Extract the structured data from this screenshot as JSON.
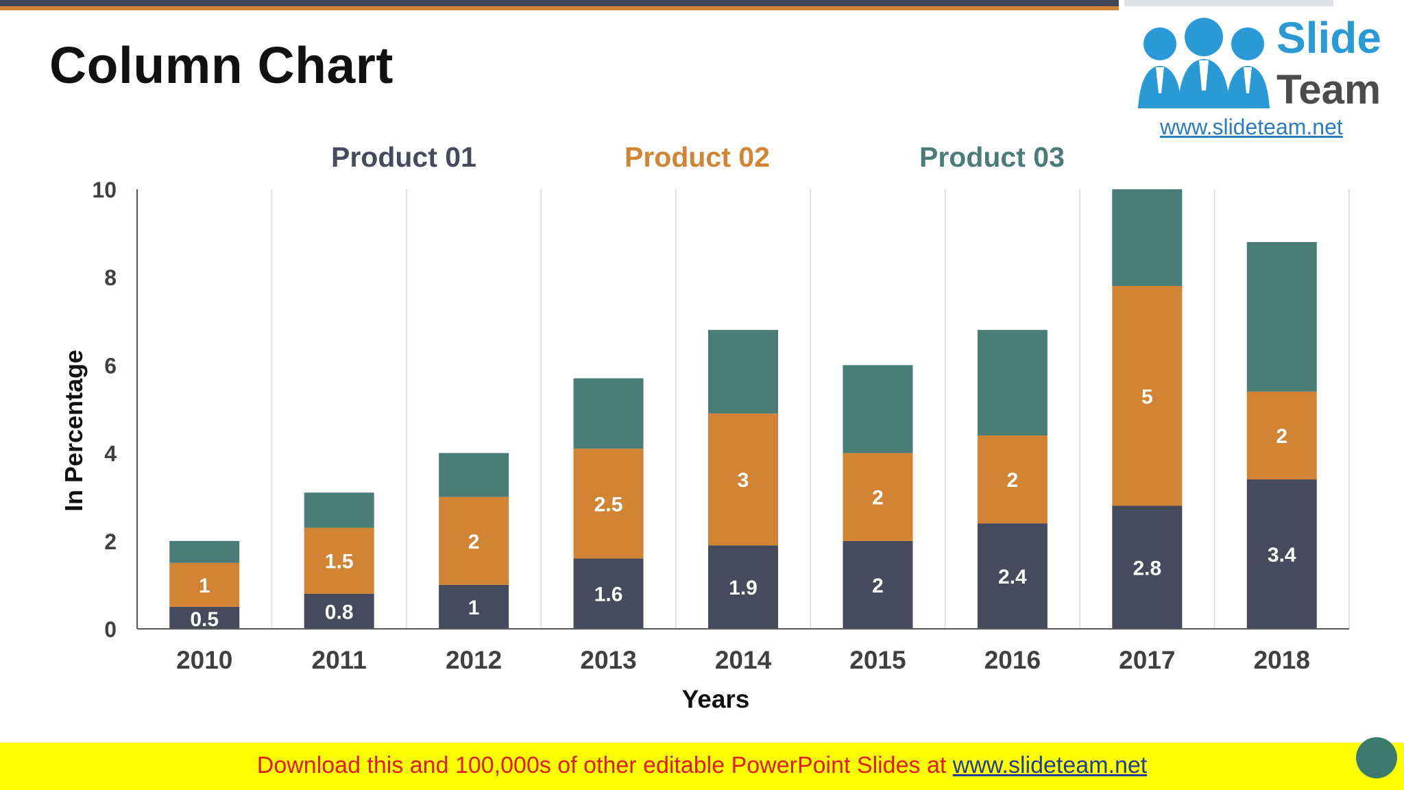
{
  "slide": {
    "title": "Column Chart"
  },
  "logo": {
    "word1": "Slide",
    "word2": "Team",
    "url": "www.slideteam.net"
  },
  "footer": {
    "text": "Download this and 100,000s of other editable PowerPoint Slides at ",
    "link": "www.slideteam.net"
  },
  "colors": {
    "product01": "#464a5c",
    "product02": "#d18433",
    "product03": "#4a7d78",
    "grid": "#d9d9d9",
    "axis": "#595959",
    "tick_text": "#404040",
    "label_light": "#ffffff"
  },
  "chart_data": {
    "type": "bar",
    "stacked": true,
    "title": "",
    "xlabel": "Years",
    "ylabel": "In Percentage",
    "ylim": [
      0,
      10
    ],
    "yticks": [
      0,
      2,
      4,
      6,
      8,
      10
    ],
    "grid": "vertical",
    "legend_position": "top",
    "categories": [
      "2010",
      "2011",
      "2012",
      "2013",
      "2014",
      "2015",
      "2016",
      "2017",
      "2018"
    ],
    "series": [
      {
        "name": "Product 01",
        "values": [
          0.5,
          0.8,
          1,
          1.6,
          1.9,
          2,
          2.4,
          2.8,
          3.4
        ],
        "data_labels": [
          "0.5",
          "0.8",
          "1",
          "1.6",
          "1.9",
          "2",
          "2.4",
          "2.8",
          "3.4"
        ]
      },
      {
        "name": "Product 02",
        "values": [
          1,
          1.5,
          2,
          2.5,
          3,
          2,
          2,
          5,
          2
        ],
        "data_labels": [
          "1",
          "1.5",
          "2",
          "2.5",
          "3",
          "2",
          "2",
          "5",
          "2"
        ]
      },
      {
        "name": "Product 03",
        "values": [
          0.5,
          0.8,
          1,
          1.6,
          1.9,
          2,
          2.4,
          2.2,
          3.4
        ],
        "data_labels": []
      }
    ]
  }
}
